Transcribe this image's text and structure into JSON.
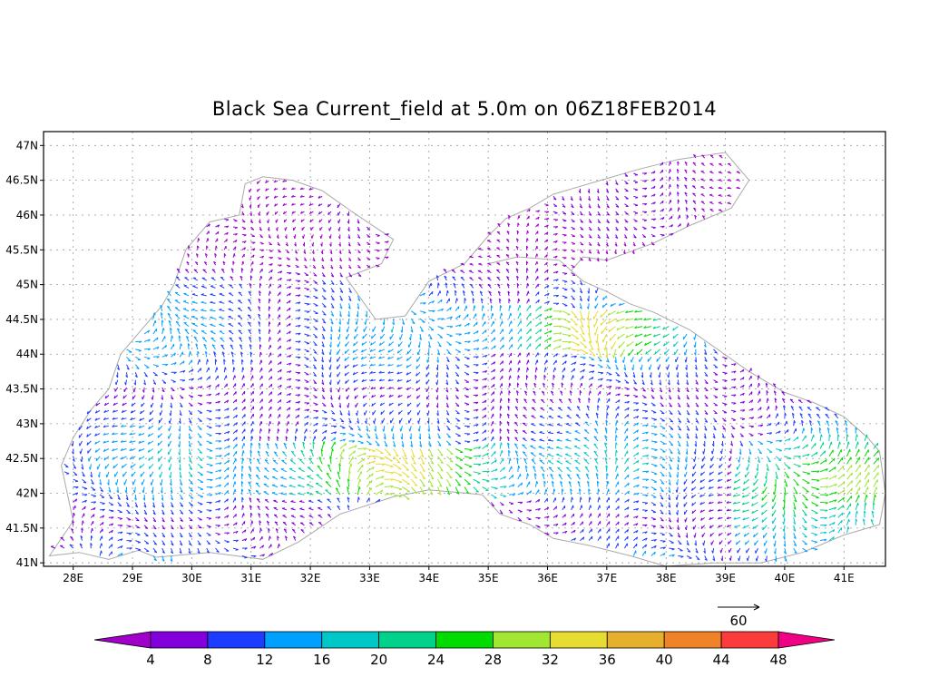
{
  "title": "Black Sea Current_field at 5.0m on 06Z18FEB2014",
  "lat_labels": [
    "47N",
    "46.5N",
    "46N",
    "45.5N",
    "45N",
    "44.5N",
    "44N",
    "43.5N",
    "43N",
    "42.5N",
    "42N",
    "41.5N",
    "41N"
  ],
  "lon_labels": [
    "28E",
    "29E",
    "30E",
    "31E",
    "32E",
    "33E",
    "34E",
    "35E",
    "36E",
    "37E",
    "38E",
    "39E",
    "40E",
    "41E"
  ],
  "reference_vector_label": "60",
  "colorbar": {
    "labels": [
      "4",
      "8",
      "12",
      "16",
      "20",
      "24",
      "28",
      "32",
      "36",
      "40",
      "44",
      "48"
    ],
    "colors": [
      "#a000c8",
      "#8200dc",
      "#1e3cff",
      "#00a0ff",
      "#00c8c8",
      "#00d28c",
      "#00dc00",
      "#a0e632",
      "#e6dc32",
      "#e6af2d",
      "#f08228",
      "#fa3c3c",
      "#f00082"
    ]
  },
  "chart_data": {
    "type": "vector_field_map",
    "region": "Black Sea",
    "depth": "5.0m",
    "time": "06Z18FEB2014",
    "xlim": [
      27.5,
      41.7
    ],
    "ylim": [
      40.95,
      47.2
    ],
    "speed_scale": [
      4,
      48
    ],
    "reference_vector": 60
  }
}
